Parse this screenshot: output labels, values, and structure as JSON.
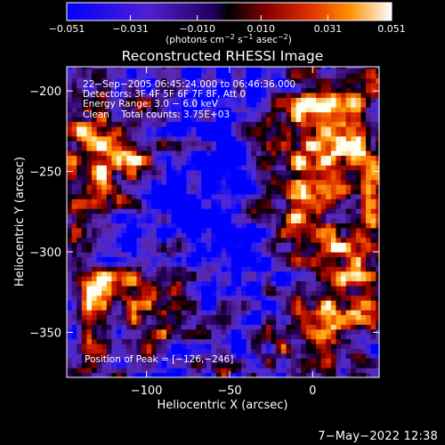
{
  "chart_data": {
    "type": "heatmap",
    "title": "Reconstructed RHESSI Image",
    "xlabel": "Heliocentric X (arcsec)",
    "ylabel": "Heliocentric Y (arcsec)",
    "xlim": [
      -148,
      40
    ],
    "ylim": [
      -378,
      -185
    ],
    "x_ticks": [
      -100,
      -50,
      0
    ],
    "x_tick_labels": [
      "−100",
      "−50",
      "0"
    ],
    "y_ticks": [
      -200,
      -250,
      -300,
      -350
    ],
    "y_tick_labels": [
      "−200",
      "−250",
      "−300",
      "−350"
    ],
    "colorbar": {
      "min": -0.051,
      "max": 0.051,
      "ticks": [
        -0.051,
        -0.031,
        -0.01,
        0.01,
        0.031,
        0.051
      ],
      "tick_labels": [
        "−0.051",
        "−0.031",
        "−0.010",
        "0.010",
        "0.031",
        "0.051"
      ],
      "units_prefix": "(photons cm",
      "units_exp1": "−2",
      "units_mid1": " s",
      "units_exp2": "−1",
      "units_mid2": " asec",
      "units_exp3": "−2",
      "units_suffix": ")"
    },
    "annotations": [
      "22−Sep−2005 06:45:24.000 to 06:46:36.000",
      "Detectors: 3F 4F 5F 6F 7F 8F, Att 0",
      "Energy Range: 3.0 − 6.0 keV",
      "Clean    Total counts: 3.75E+03"
    ],
    "peak_label": "Position of Peak = [−126,−246]",
    "peak_position": [
      -126,
      -246
    ],
    "blobs": [
      {
        "x": -118,
        "y": -238,
        "amp": 0.055,
        "sx": 20,
        "sy": 16
      },
      {
        "x": -126,
        "y": -246,
        "amp": 0.03,
        "sx": 8,
        "sy": 8
      },
      {
        "x": -140,
        "y": -205,
        "amp": 0.035,
        "sx": 10,
        "sy": 14
      },
      {
        "x": -95,
        "y": -212,
        "amp": 0.02,
        "sx": 12,
        "sy": 10
      },
      {
        "x": -70,
        "y": -200,
        "amp": 0.015,
        "sx": 14,
        "sy": 9
      },
      {
        "x": -138,
        "y": -270,
        "amp": 0.028,
        "sx": 10,
        "sy": 14
      },
      {
        "x": -120,
        "y": -325,
        "amp": 0.05,
        "sx": 26,
        "sy": 14
      },
      {
        "x": -85,
        "y": -340,
        "amp": 0.035,
        "sx": 14,
        "sy": 12
      },
      {
        "x": -118,
        "y": -362,
        "amp": 0.025,
        "sx": 20,
        "sy": 9
      },
      {
        "x": -60,
        "y": -370,
        "amp": 0.015,
        "sx": 12,
        "sy": 7
      },
      {
        "x": 12,
        "y": -215,
        "amp": 0.055,
        "sx": 22,
        "sy": 22
      },
      {
        "x": 5,
        "y": -250,
        "amp": 0.045,
        "sx": 18,
        "sy": 18
      },
      {
        "x": -12,
        "y": -280,
        "amp": 0.03,
        "sx": 14,
        "sy": 16
      },
      {
        "x": 22,
        "y": -305,
        "amp": 0.05,
        "sx": 16,
        "sy": 20
      },
      {
        "x": 5,
        "y": -340,
        "amp": 0.045,
        "sx": 20,
        "sy": 16
      },
      {
        "x": -5,
        "y": -368,
        "amp": 0.03,
        "sx": 16,
        "sy": 10
      },
      {
        "x": 34,
        "y": -268,
        "amp": 0.03,
        "sx": 8,
        "sy": 18
      },
      {
        "x": -52,
        "y": -200,
        "amp": -0.03,
        "sx": 22,
        "sy": 12
      },
      {
        "x": -60,
        "y": -240,
        "amp": -0.035,
        "sx": 20,
        "sy": 22
      },
      {
        "x": -75,
        "y": -280,
        "amp": -0.03,
        "sx": 16,
        "sy": 18
      },
      {
        "x": -50,
        "y": -300,
        "amp": -0.03,
        "sx": 14,
        "sy": 24
      },
      {
        "x": -55,
        "y": -352,
        "amp": -0.025,
        "sx": 18,
        "sy": 14
      },
      {
        "x": -30,
        "y": -325,
        "amp": -0.02,
        "sx": 10,
        "sy": 14
      }
    ]
  },
  "timestamp": "7−May−2022 12:38"
}
